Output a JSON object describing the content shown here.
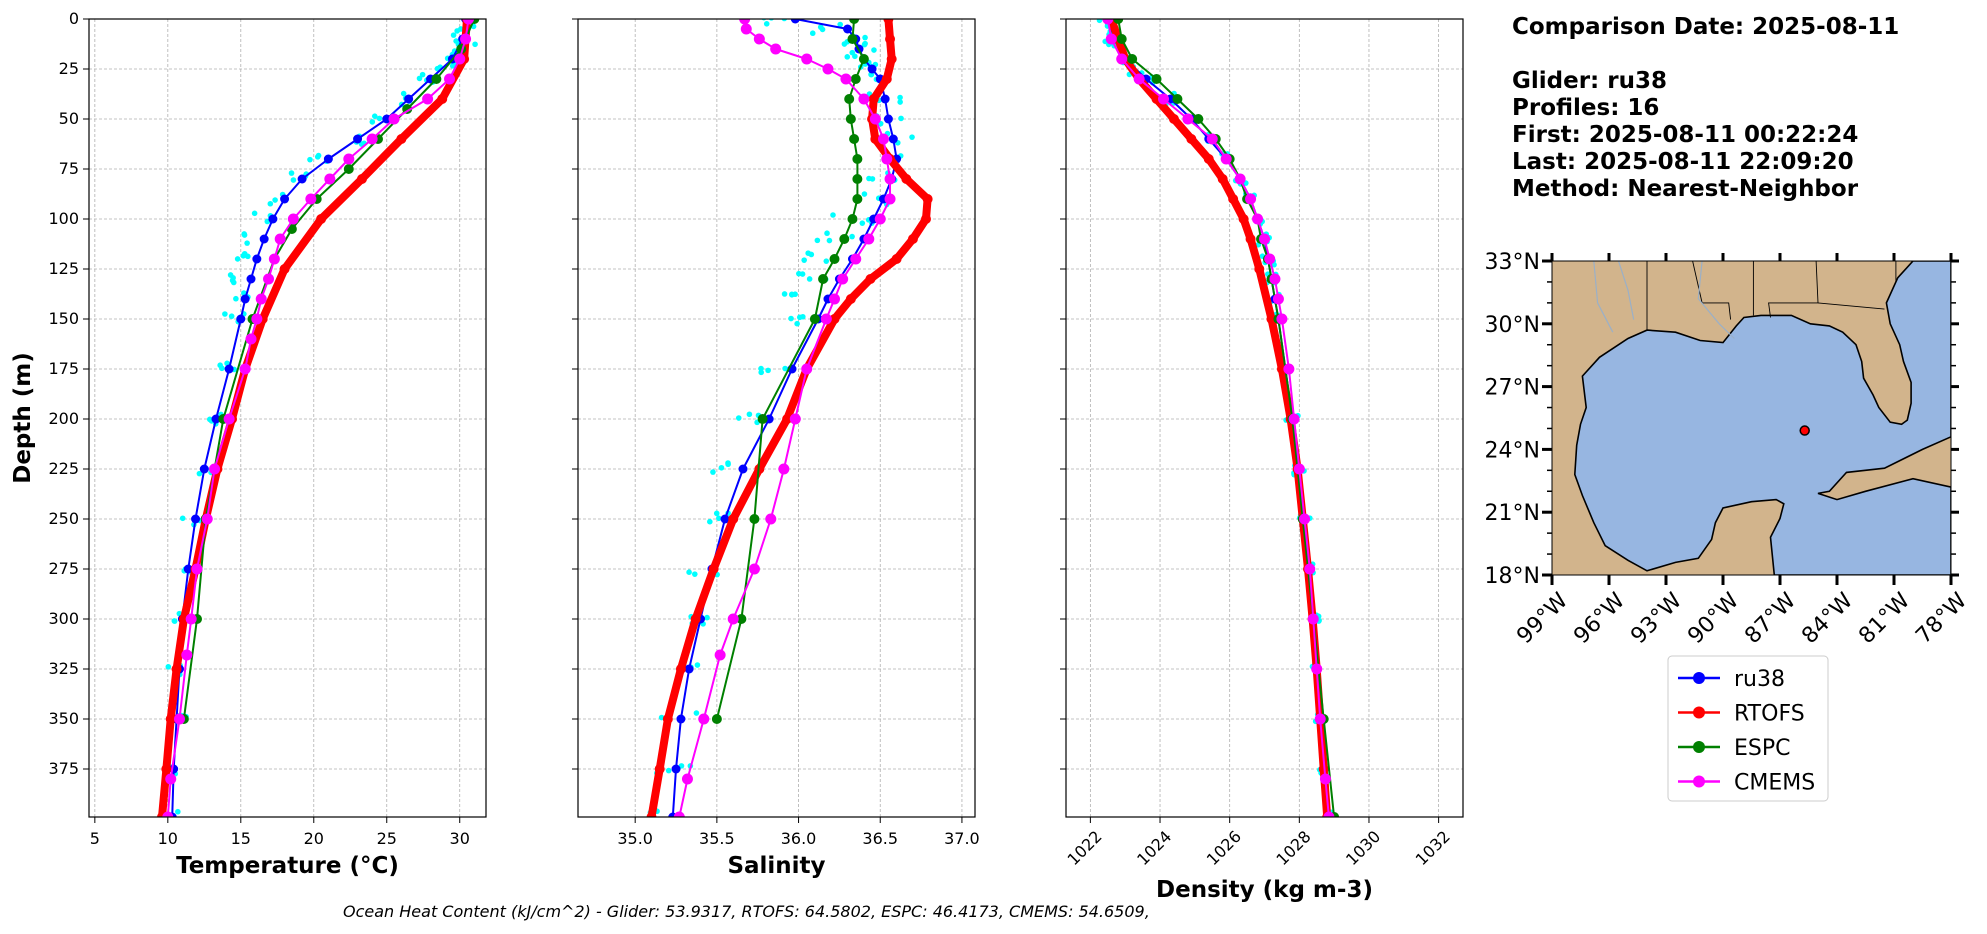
{
  "info": {
    "comparison_date": "Comparison Date: 2025-08-11",
    "glider": "Glider: ru38",
    "profiles": "Profiles: 16",
    "first": "First: 2025-08-11 00:22:24",
    "last": "Last: 2025-08-11 22:09:20",
    "method": "Method: Nearest-Neighbor"
  },
  "footer": "Ocean Heat Content (kJ/cm^2) - Glider: 53.9317,  RTOFS: 64.5802,  ESPC: 46.4173,  CMEMS: 54.6509,",
  "map": {
    "lat_labels": [
      "33°N",
      "30°N",
      "27°N",
      "24°N",
      "21°N",
      "18°N"
    ],
    "lat_values": [
      33,
      30,
      27,
      24,
      21,
      18
    ],
    "lon_labels": [
      "99°W",
      "96°W",
      "93°W",
      "90°W",
      "87°W",
      "84°W",
      "81°W",
      "78°W"
    ],
    "lon_values": [
      -99,
      -96,
      -93,
      -90,
      -87,
      -84,
      -81,
      -78
    ],
    "extent": {
      "lon": [
        -99,
        -78
      ],
      "lat": [
        18,
        33
      ]
    },
    "glider_position": {
      "lon": -85.7,
      "lat": 24.9
    },
    "land_color": "#d2b48c",
    "ocean_color": "#97b6e1"
  },
  "chart_data": [
    {
      "type": "line",
      "xlabel": "Temperature",
      "xlabel_unit": "(°C)",
      "ylabel": "Depth (m)",
      "xlim": [
        4.6,
        31.8
      ],
      "ylim": [
        399,
        0
      ],
      "xticks": [
        5,
        10,
        15,
        20,
        25,
        30
      ],
      "yticks": [
        0,
        25,
        50,
        75,
        100,
        125,
        150,
        175,
        200,
        225,
        250,
        275,
        300,
        325,
        350,
        375
      ],
      "grid": true,
      "series": [
        {
          "name": "ru38",
          "color": "#0000ff",
          "depth": [
            0,
            10,
            20,
            30,
            40,
            50,
            60,
            70,
            80,
            90,
            100,
            110,
            120,
            130,
            140,
            150,
            175,
            200,
            225,
            250,
            275,
            300,
            325,
            350,
            375,
            399
          ],
          "values": [
            30.4,
            30.2,
            29.5,
            28.0,
            26.5,
            25.0,
            23.0,
            21.0,
            19.2,
            18.0,
            17.2,
            16.6,
            16.1,
            15.7,
            15.3,
            15.0,
            14.2,
            13.3,
            12.5,
            11.9,
            11.4,
            11.0,
            10.8,
            10.6,
            10.4,
            10.3
          ]
        },
        {
          "name": "RTOFS",
          "color": "#ff0000",
          "depth": [
            0,
            20,
            40,
            60,
            80,
            100,
            125,
            150,
            175,
            200,
            225,
            250,
            275,
            300,
            325,
            350,
            375,
            399
          ],
          "values": [
            30.5,
            30.3,
            28.8,
            26.0,
            23.3,
            20.5,
            18.0,
            16.5,
            15.3,
            14.4,
            13.4,
            12.6,
            11.9,
            11.1,
            10.6,
            10.2,
            9.9,
            9.6
          ]
        },
        {
          "name": "ESPC",
          "color": "#008000",
          "depth": [
            0,
            15,
            30,
            45,
            60,
            75,
            90,
            105,
            120,
            150,
            200,
            250,
            300,
            350
          ],
          "values": [
            31.0,
            30.1,
            28.4,
            26.4,
            24.4,
            22.4,
            20.2,
            18.5,
            17.3,
            15.8,
            13.8,
            12.6,
            12.0,
            11.1
          ]
        },
        {
          "name": "CMEMS",
          "color": "#ff00ff",
          "depth": [
            0,
            10,
            20,
            30,
            40,
            50,
            60,
            70,
            80,
            90,
            100,
            110,
            120,
            130,
            140,
            150,
            160,
            175,
            200,
            225,
            250,
            275,
            300,
            318,
            350,
            380,
            399
          ],
          "values": [
            30.6,
            30.4,
            30.0,
            29.3,
            27.8,
            25.5,
            24.0,
            22.4,
            21.1,
            19.8,
            18.6,
            17.7,
            17.3,
            16.9,
            16.4,
            16.1,
            15.7,
            15.3,
            14.2,
            13.2,
            12.7,
            12.0,
            11.6,
            11.3,
            10.8,
            10.2,
            10.0
          ]
        }
      ],
      "scatter": {
        "name": "glider profiles",
        "color": "#00ffff",
        "depth": [
          0,
          5,
          10,
          15,
          20,
          25,
          30,
          40,
          50,
          60,
          70,
          80,
          90,
          100,
          110,
          120,
          130,
          140,
          150,
          175,
          200,
          225,
          250,
          275,
          300,
          325,
          350,
          375,
          399
        ],
        "values": [
          30.6,
          30.5,
          30.3,
          30.0,
          29.6,
          28.9,
          27.9,
          26.3,
          24.6,
          22.7,
          20.5,
          18.7,
          17.4,
          16.5,
          16.0,
          15.5,
          15.1,
          14.8,
          14.6,
          13.9,
          13.0,
          12.3,
          11.7,
          11.3,
          11.0,
          10.8,
          10.6,
          10.4,
          10.3
        ],
        "spread": 0.8
      }
    },
    {
      "type": "line",
      "xlabel": "Salinity",
      "xlim": [
        34.65,
        37.08
      ],
      "ylim": [
        399,
        0
      ],
      "xticks": [
        35.0,
        35.5,
        36.0,
        36.5,
        37.0
      ],
      "yticks": [
        0,
        25,
        50,
        75,
        100,
        125,
        150,
        175,
        200,
        225,
        250,
        275,
        300,
        325,
        350,
        375
      ],
      "grid": true,
      "series": [
        {
          "name": "ru38",
          "color": "#0000ff",
          "depth": [
            0,
            5,
            10,
            15,
            20,
            25,
            30,
            40,
            50,
            60,
            70,
            80,
            90,
            100,
            110,
            120,
            130,
            140,
            150,
            175,
            200,
            225,
            250,
            275,
            300,
            325,
            350,
            375,
            399
          ],
          "values": [
            35.98,
            36.3,
            36.35,
            36.37,
            36.4,
            36.45,
            36.5,
            36.53,
            36.55,
            36.58,
            36.6,
            36.57,
            36.52,
            36.46,
            36.4,
            36.33,
            36.25,
            36.18,
            36.12,
            35.96,
            35.82,
            35.66,
            35.55,
            35.47,
            35.4,
            35.33,
            35.28,
            35.25,
            35.23
          ]
        },
        {
          "name": "RTOFS",
          "color": "#ff0000",
          "depth": [
            0,
            10,
            20,
            30,
            40,
            50,
            60,
            70,
            80,
            90,
            100,
            110,
            120,
            130,
            140,
            150,
            175,
            200,
            225,
            250,
            275,
            300,
            325,
            350,
            375,
            399
          ],
          "values": [
            36.55,
            36.56,
            36.57,
            36.54,
            36.46,
            36.45,
            36.47,
            36.56,
            36.66,
            36.79,
            36.78,
            36.7,
            36.6,
            36.44,
            36.32,
            36.22,
            36.05,
            35.93,
            35.76,
            35.6,
            35.48,
            35.37,
            35.28,
            35.2,
            35.15,
            35.1
          ]
        },
        {
          "name": "ESPC",
          "color": "#008000",
          "depth": [
            0,
            10,
            20,
            30,
            40,
            50,
            60,
            70,
            80,
            90,
            100,
            110,
            120,
            130,
            150,
            200,
            250,
            300,
            350
          ],
          "values": [
            36.34,
            36.33,
            36.4,
            36.35,
            36.31,
            36.32,
            36.34,
            36.36,
            36.36,
            36.36,
            36.33,
            36.28,
            36.22,
            36.15,
            36.1,
            35.78,
            35.73,
            35.65,
            35.5
          ]
        },
        {
          "name": "CMEMS",
          "color": "#ff00ff",
          "depth": [
            0,
            5,
            10,
            15,
            20,
            25,
            30,
            40,
            50,
            60,
            70,
            80,
            90,
            100,
            110,
            120,
            130,
            140,
            150,
            175,
            200,
            225,
            250,
            275,
            300,
            318,
            350,
            380,
            399
          ],
          "values": [
            35.67,
            35.68,
            35.76,
            35.86,
            36.05,
            36.18,
            36.29,
            36.4,
            36.47,
            36.52,
            36.54,
            36.56,
            36.56,
            36.5,
            36.43,
            36.35,
            36.27,
            36.22,
            36.17,
            36.05,
            35.98,
            35.91,
            35.83,
            35.73,
            35.6,
            35.52,
            35.42,
            35.32,
            35.27
          ]
        }
      ],
      "scatter": {
        "name": "glider profiles",
        "color": "#00ffff",
        "depth": [
          0,
          5,
          10,
          15,
          20,
          25,
          30,
          40,
          50,
          60,
          70,
          80,
          90,
          100,
          110,
          120,
          130,
          140,
          150,
          175,
          200,
          225,
          250,
          275,
          300,
          325,
          350,
          375,
          399
        ],
        "values": [
          35.9,
          36.2,
          36.3,
          36.35,
          36.38,
          36.42,
          36.47,
          36.52,
          36.54,
          36.58,
          36.62,
          36.55,
          36.45,
          36.33,
          36.22,
          36.12,
          36.06,
          36.0,
          35.95,
          35.83,
          35.7,
          35.58,
          35.5,
          35.43,
          35.37,
          35.31,
          35.26,
          35.23,
          35.21
        ],
        "spread": 0.12
      }
    },
    {
      "type": "line",
      "xlabel": "Density (kg m-3)",
      "xlim": [
        1021.3,
        1032.7
      ],
      "ylim": [
        399,
        0
      ],
      "xticks": [
        1022,
        1024,
        1026,
        1028,
        1030,
        1032
      ],
      "yticks": [
        0,
        25,
        50,
        75,
        100,
        125,
        150,
        175,
        200,
        225,
        250,
        275,
        300,
        325,
        350,
        375
      ],
      "grid": true,
      "series": [
        {
          "name": "ru38",
          "color": "#0000ff",
          "depth": [
            0,
            10,
            20,
            30,
            40,
            50,
            60,
            70,
            80,
            90,
            100,
            110,
            120,
            130,
            140,
            150,
            175,
            200,
            225,
            250,
            275,
            300,
            325,
            350,
            375,
            399
          ],
          "values": [
            1022.5,
            1022.7,
            1023.0,
            1023.6,
            1024.3,
            1024.9,
            1025.4,
            1025.9,
            1026.3,
            1026.6,
            1026.8,
            1027.0,
            1027.1,
            1027.2,
            1027.3,
            1027.4,
            1027.6,
            1027.8,
            1028.0,
            1028.15,
            1028.3,
            1028.4,
            1028.5,
            1028.6,
            1028.7,
            1028.8
          ]
        },
        {
          "name": "RTOFS",
          "color": "#ff0000",
          "depth": [
            0,
            10,
            20,
            30,
            40,
            50,
            60,
            70,
            80,
            90,
            100,
            110,
            125,
            150,
            175,
            200,
            225,
            250,
            275,
            300,
            325,
            350,
            375,
            399
          ],
          "values": [
            1022.6,
            1022.8,
            1023.0,
            1023.4,
            1023.9,
            1024.4,
            1024.9,
            1025.4,
            1025.8,
            1026.1,
            1026.4,
            1026.6,
            1026.85,
            1027.2,
            1027.5,
            1027.75,
            1027.95,
            1028.1,
            1028.25,
            1028.38,
            1028.5,
            1028.6,
            1028.7,
            1028.8
          ]
        },
        {
          "name": "ESPC",
          "color": "#008000",
          "depth": [
            0,
            10,
            20,
            30,
            40,
            50,
            60,
            70,
            80,
            90,
            100,
            110,
            120,
            130,
            150,
            200,
            250,
            300,
            350,
            399
          ],
          "values": [
            1022.8,
            1022.9,
            1023.2,
            1023.9,
            1024.5,
            1025.1,
            1025.6,
            1026.0,
            1026.3,
            1026.5,
            1026.8,
            1026.9,
            1027.1,
            1027.2,
            1027.4,
            1027.8,
            1028.1,
            1028.4,
            1028.7,
            1029.0
          ]
        },
        {
          "name": "CMEMS",
          "color": "#ff00ff",
          "depth": [
            0,
            10,
            20,
            30,
            40,
            50,
            60,
            70,
            80,
            90,
            100,
            110,
            120,
            130,
            140,
            150,
            175,
            200,
            225,
            250,
            275,
            300,
            325,
            350,
            380,
            399
          ],
          "values": [
            1022.5,
            1022.6,
            1022.9,
            1023.4,
            1024.1,
            1024.8,
            1025.5,
            1025.9,
            1026.3,
            1026.6,
            1026.8,
            1027.0,
            1027.15,
            1027.3,
            1027.4,
            1027.5,
            1027.7,
            1027.85,
            1028.0,
            1028.15,
            1028.3,
            1028.4,
            1028.5,
            1028.6,
            1028.75,
            1028.85
          ]
        }
      ],
      "scatter": {
        "name": "glider profiles",
        "color": "#00ffff",
        "depth": [
          0,
          5,
          10,
          15,
          20,
          25,
          30,
          40,
          50,
          60,
          70,
          80,
          90,
          100,
          110,
          120,
          130,
          140,
          150,
          175,
          200,
          225,
          250,
          275,
          300,
          325,
          350,
          375,
          399
        ],
        "values": [
          1022.4,
          1022.5,
          1022.6,
          1022.8,
          1023.0,
          1023.3,
          1023.7,
          1024.3,
          1024.9,
          1025.5,
          1025.9,
          1026.3,
          1026.6,
          1026.8,
          1027.0,
          1027.1,
          1027.2,
          1027.3,
          1027.4,
          1027.6,
          1027.8,
          1028.0,
          1028.15,
          1028.3,
          1028.4,
          1028.5,
          1028.6,
          1028.7,
          1028.8
        ],
        "spread": 0.18
      }
    }
  ],
  "legend": {
    "placement": "below map",
    "entries": [
      {
        "label": "ru38",
        "color": "#0000ff"
      },
      {
        "label": "RTOFS",
        "color": "#ff0000"
      },
      {
        "label": "ESPC",
        "color": "#008000"
      },
      {
        "label": "CMEMS",
        "color": "#ff00ff"
      }
    ]
  }
}
